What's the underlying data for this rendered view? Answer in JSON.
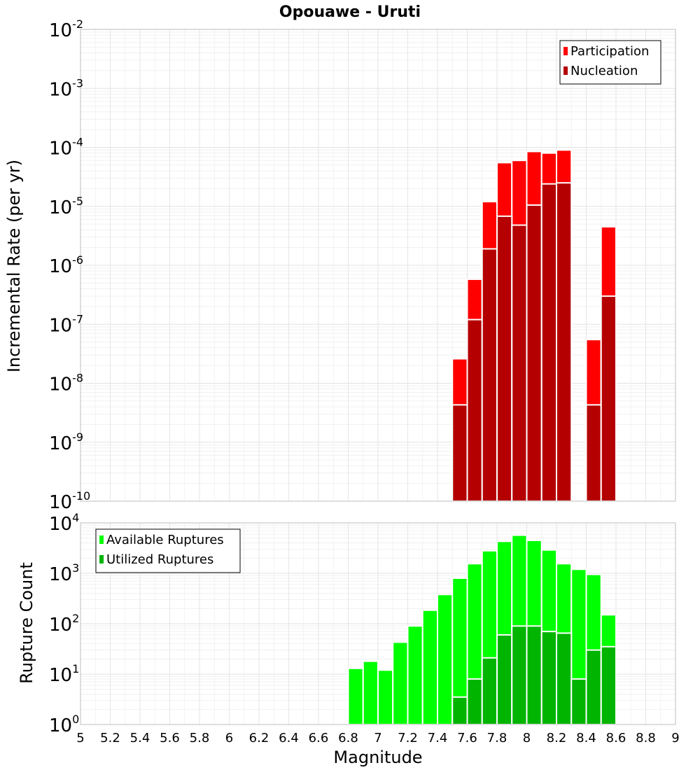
{
  "chart_data": [
    {
      "type": "bar",
      "title": "Opouawe - Uruti",
      "xlabel": "",
      "ylabel": "Incremental Rate (per yr)",
      "yscale": "log",
      "ylim": [
        1e-10,
        0.01
      ],
      "xlim": [
        5,
        9
      ],
      "bar_width": 0.1,
      "legend_position": "top-right",
      "grid": true,
      "series": [
        {
          "name": "Participation",
          "color": "#ff0000",
          "x": [
            7.55,
            7.65,
            7.75,
            7.85,
            7.95,
            8.05,
            8.15,
            8.25,
            8.45,
            8.55
          ],
          "values": [
            2.6e-08,
            5.8e-07,
            1.2e-05,
            5.5e-05,
            6e-05,
            8.5e-05,
            8e-05,
            9e-05,
            5.5e-08,
            4.5e-06
          ]
        },
        {
          "name": "Nucleation",
          "color": "#b40000",
          "x": [
            7.55,
            7.65,
            7.75,
            7.85,
            7.95,
            8.05,
            8.15,
            8.25,
            8.45,
            8.55
          ],
          "values": [
            4.3e-09,
            1.2e-07,
            1.9e-06,
            6.8e-06,
            4.8e-06,
            1.05e-05,
            2.4e-05,
            2.5e-05,
            4.3e-09,
            3e-07
          ]
        }
      ]
    },
    {
      "type": "bar",
      "title": "",
      "xlabel": "Magnitude",
      "ylabel": "Rupture Count",
      "yscale": "log",
      "ylim": [
        1,
        10000
      ],
      "xlim": [
        5,
        9
      ],
      "bar_width": 0.1,
      "legend_position": "top-left",
      "grid": true,
      "x_ticks": [
        "5",
        "5.2",
        "5.4",
        "5.6",
        "5.8",
        "6",
        "6.2",
        "6.4",
        "6.6",
        "6.8",
        "7",
        "7.2",
        "7.4",
        "7.6",
        "7.8",
        "8",
        "8.2",
        "8.4",
        "8.6",
        "8.8",
        "9"
      ],
      "series": [
        {
          "name": "Available Ruptures",
          "color": "#00ff00",
          "x": [
            6.85,
            6.95,
            7.05,
            7.15,
            7.25,
            7.35,
            7.45,
            7.55,
            7.65,
            7.75,
            7.85,
            7.95,
            8.05,
            8.15,
            8.25,
            8.35,
            8.45,
            8.55
          ],
          "values": [
            13,
            18,
            12,
            43,
            90,
            185,
            380,
            800,
            1550,
            2800,
            4300,
            5700,
            4500,
            2900,
            1550,
            1200,
            950,
            150
          ]
        },
        {
          "name": "Utilized Ruptures",
          "color": "#00b400",
          "x": [
            7.55,
            7.65,
            7.75,
            7.85,
            7.95,
            8.05,
            8.15,
            8.25,
            8.35,
            8.45,
            8.55
          ],
          "values": [
            3.5,
            8,
            21,
            60,
            90,
            90,
            70,
            65,
            8,
            30,
            35
          ]
        }
      ]
    }
  ]
}
